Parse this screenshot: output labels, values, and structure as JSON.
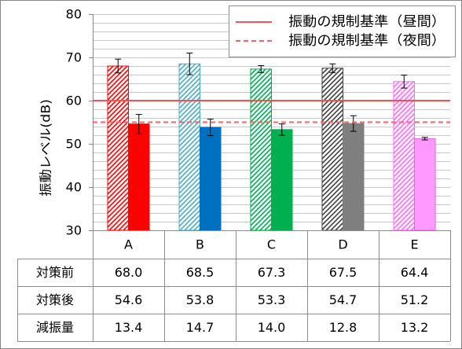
{
  "chart_data": {
    "type": "bar",
    "categories": [
      "A",
      "B",
      "C",
      "D",
      "E"
    ],
    "ylabel": "振動レベル(dB)",
    "ylim": [
      30,
      80
    ],
    "yticks": [
      80,
      70,
      60,
      50,
      40,
      30
    ],
    "grid": true,
    "legend_position": "top-right",
    "series": [
      {
        "name": "対策前",
        "values": [
          68.0,
          68.5,
          67.3,
          67.5,
          64.4
        ],
        "error": [
          1.6,
          2.5,
          0.8,
          1.0,
          1.5
        ],
        "colors": [
          "#ff0000",
          "#4bacc6",
          "#00b050",
          "#404040",
          "#ff66ff"
        ]
      },
      {
        "name": "対策後",
        "values": [
          54.6,
          53.8,
          53.3,
          54.7,
          51.2
        ],
        "error": [
          2.2,
          1.9,
          1.3,
          1.8,
          0.3
        ],
        "colors": [
          "#ff0000",
          "#0070c0",
          "#00b050",
          "#7f7f7f",
          "#ff99ff"
        ],
        "border_colors": [
          "#ff0000",
          "#0070c0",
          "#00b050",
          "#7f7f7f",
          "#d966d9"
        ]
      }
    ],
    "reference_lines": [
      {
        "name": "振動の規制基準（昼間）",
        "value": 60,
        "line_style": "solid",
        "color": "#ff4d4d"
      },
      {
        "name": "振動の規制基準（夜間）",
        "value": 55,
        "line_style": "dashed",
        "color": "#ff6161"
      }
    ],
    "data_table": {
      "rows": [
        {
          "values": [
            "68.0",
            "68.5",
            "67.3",
            "67.5",
            "64.4"
          ]
        },
        {
          "values": [
            "54.6",
            "53.8",
            "53.3",
            "54.7",
            "51.2"
          ]
        },
        {
          "label": "減振量",
          "values": [
            "13.4",
            "14.7",
            "14.0",
            "12.8",
            "13.2"
          ]
        }
      ]
    },
    "colors": {
      "grid": "#c8c8c8",
      "axis": "#868686",
      "table_border": "#8c8c8c",
      "legend_border": "#8c8c8c",
      "chart_border": "#868686",
      "error_bar": "#000000"
    }
  }
}
